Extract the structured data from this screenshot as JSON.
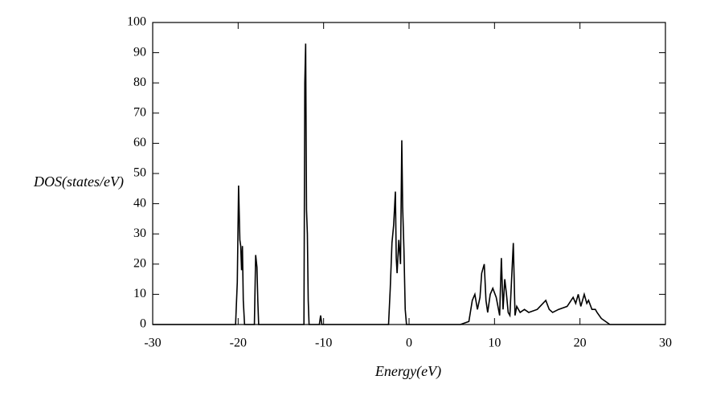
{
  "chart_data": {
    "type": "line",
    "x_label": "Energy(eV)",
    "y_label": "DOS(states/eV)",
    "xlim": [
      -30,
      30
    ],
    "xticks": [
      -30,
      -20,
      -10,
      0,
      10,
      20,
      30
    ],
    "ylim": [
      0,
      100
    ],
    "yticks": [
      0,
      10,
      20,
      30,
      40,
      50,
      60,
      70,
      80,
      90,
      100
    ],
    "grid": false,
    "series": [
      {
        "color": "#000000",
        "x": [
          -30,
          -20.3,
          -20.1,
          -19.95,
          -19.8,
          -19.7,
          -19.6,
          -19.5,
          -19.4,
          -19.25,
          -18.5,
          -18.1,
          -17.95,
          -17.8,
          -17.7,
          -17.6,
          -12.5,
          -12.3,
          -12.2,
          -12.1,
          -12.0,
          -11.9,
          -11.8,
          -11.7,
          -10.5,
          -10.35,
          -10.2,
          -3,
          -2.4,
          -2.2,
          -2.0,
          -1.8,
          -1.6,
          -1.5,
          -1.4,
          -1.2,
          -1.0,
          -0.85,
          -0.75,
          -0.6,
          -0.45,
          -0.3,
          6.0,
          7.0,
          7.4,
          7.7,
          8.0,
          8.3,
          8.5,
          8.8,
          9.0,
          9.2,
          9.5,
          9.8,
          10.2,
          10.6,
          10.8,
          11.0,
          11.2,
          11.4,
          11.6,
          11.8,
          12.2,
          12.4,
          12.6,
          13.0,
          13.5,
          14.0,
          15.0,
          16.0,
          16.4,
          16.8,
          17.5,
          18.5,
          19.2,
          19.5,
          19.8,
          20.1,
          20.5,
          20.8,
          21.0,
          21.4,
          21.8,
          22.0,
          22.5,
          23.0,
          23.5,
          24.0,
          30
        ],
        "values": [
          0,
          0,
          14,
          46,
          28,
          26,
          18,
          26,
          8,
          0,
          0,
          0,
          23,
          19,
          8,
          0,
          0,
          0,
          80,
          93,
          38,
          30,
          8,
          0,
          0,
          3,
          0,
          0,
          0,
          12,
          27,
          33,
          44,
          22,
          17,
          28,
          20,
          61,
          39,
          25,
          5,
          0,
          0,
          1,
          8,
          10,
          5,
          9,
          17,
          20,
          8,
          4,
          10,
          12,
          9,
          3,
          22,
          5,
          15,
          10,
          4,
          3,
          27,
          3,
          6,
          4,
          5,
          4,
          5,
          8,
          5,
          4,
          5,
          6,
          9,
          7,
          10,
          6,
          10,
          7,
          8,
          5,
          5,
          4,
          2,
          1,
          0,
          0,
          0
        ]
      }
    ]
  }
}
